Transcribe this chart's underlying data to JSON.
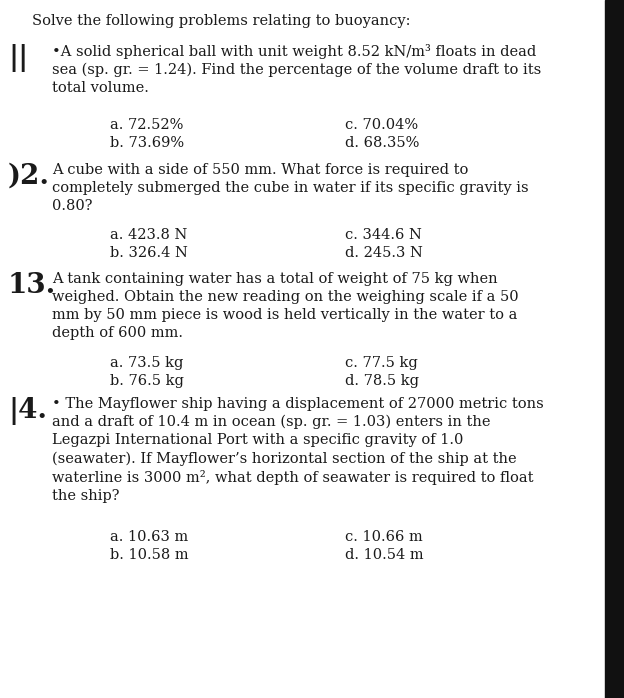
{
  "bg_color": "#ffffff",
  "text_color": "#1a1a1a",
  "border_color": "#1a1a1a",
  "title": "Solve the following problems relating to buoyancy:",
  "q1_label": "||",
  "q1_text": "•A solid spherical ball with unit weight 8.52 kN/m³ floats in dead\nsea (sp. gr. = 1.24). Find the percentage of the volume draft to its\ntotal volume.",
  "q1_choices_left": [
    "a. 72.52%",
    "b. 73.69%"
  ],
  "q1_choices_right": [
    "c. 70.04%",
    "d. 68.35%"
  ],
  "q2_label": ")2.",
  "q2_text": "A cube with a side of 550 mm. What force is required to\ncompletely submerged the cube in water if its specific gravity is\n0.80?",
  "q2_choices_left": [
    "a. 423.8 N",
    "b. 326.4 N"
  ],
  "q2_choices_right": [
    "c. 344.6 N",
    "d. 245.3 N"
  ],
  "q3_label": "13.",
  "q3_text": "A tank containing water has a total of weight of 75 kg when\nweighed. Obtain the new reading on the weighing scale if a 50\nmm by 50 mm piece is wood is held vertically in the water to a\ndepth of 600 mm.",
  "q3_choices_left": [
    "a. 73.5 kg",
    "b. 76.5 kg"
  ],
  "q3_choices_right": [
    "c. 77.5 kg",
    "d. 78.5 kg"
  ],
  "q4_label": "|4.",
  "q4_text": "• The Mayflower ship having a displacement of 27000 metric tons\nand a draft of 10.4 m in ocean (sp. gr. = 1.03) enters in the\nLegazpi International Port with a specific gravity of 1.0\n(seawater). If Mayflower’s horizontal section of the ship at the\nwaterline is 3000 m², what depth of seawater is required to float\nthe ship?",
  "q4_choices_left": [
    "a. 10.63 m",
    "b. 10.58 m"
  ],
  "q4_choices_right": [
    "c. 10.66 m",
    "d. 10.54 m"
  ],
  "font_family": "DejaVu Serif",
  "title_fs": 10.5,
  "label_fs": 19,
  "body_fs": 10.5,
  "choice_fs": 10.5,
  "fig_width": 6.24,
  "fig_height": 6.98,
  "dpi": 100
}
